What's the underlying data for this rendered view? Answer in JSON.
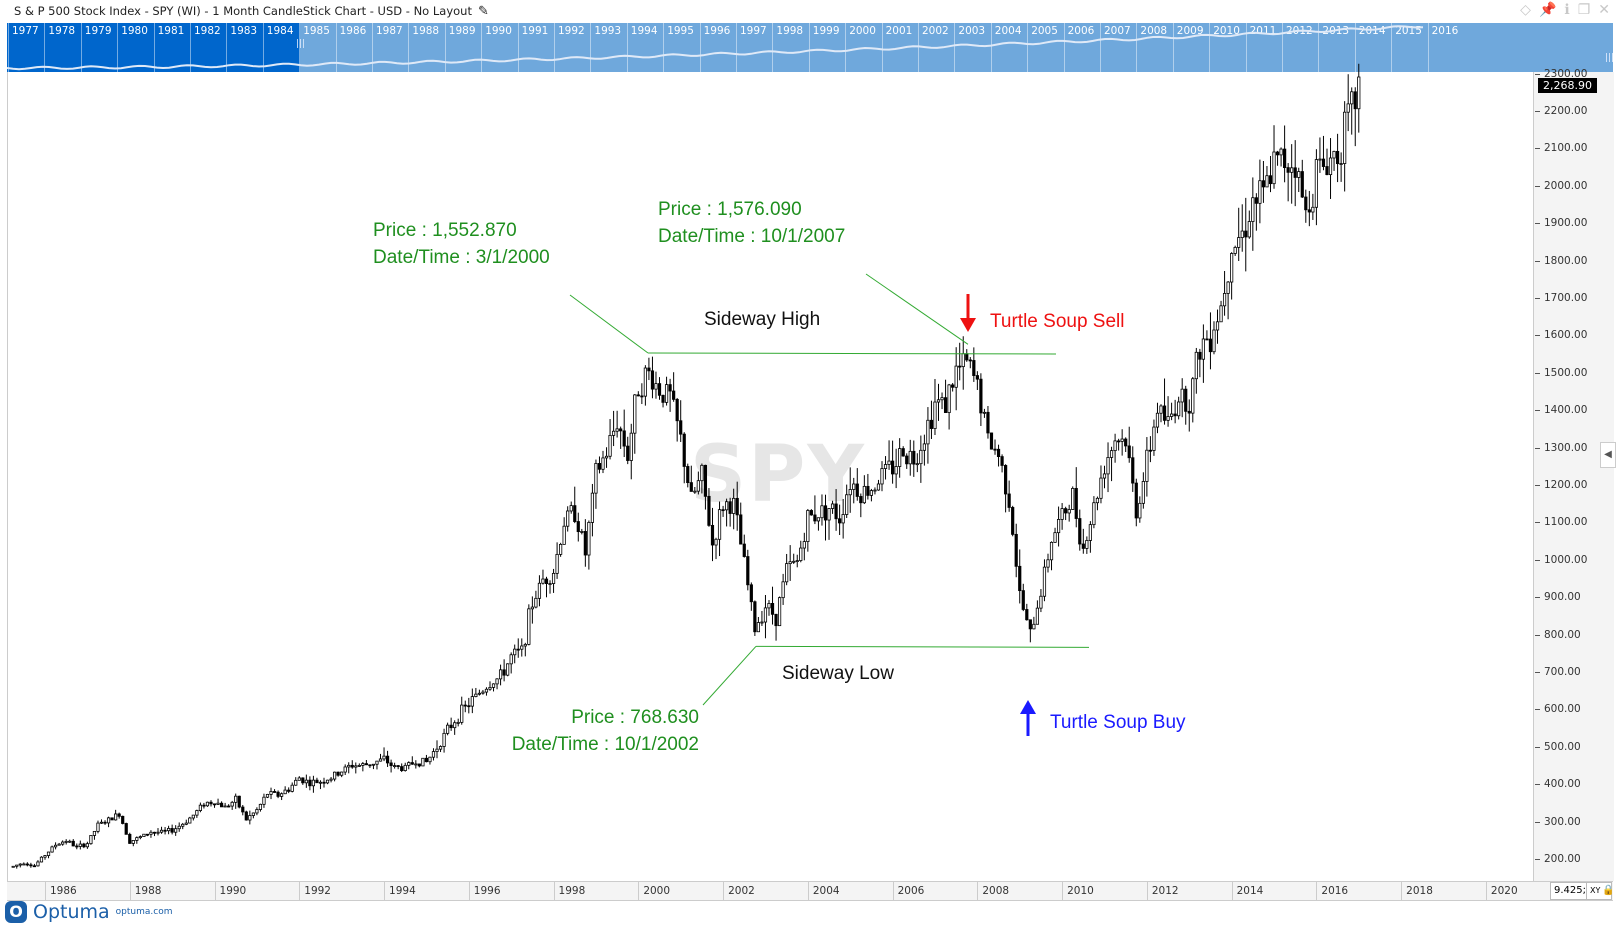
{
  "header": {
    "title": "S & P 500 Stock Index - SPY (WI) - 1 Month CandleStick Chart - USD - No Layout",
    "window_icons": [
      "diamond-icon",
      "pin-icon",
      "info-icon",
      "restore-icon",
      "close-icon"
    ]
  },
  "navigator": {
    "years": [
      "1977",
      "1978",
      "1979",
      "1980",
      "1981",
      "1982",
      "1983",
      "1984",
      "1985",
      "1986",
      "1987",
      "1988",
      "1989",
      "1990",
      "1991",
      "1992",
      "1993",
      "1994",
      "1995",
      "1996",
      "1997",
      "1998",
      "1999",
      "2000",
      "2001",
      "2002",
      "2003",
      "2004",
      "2005",
      "2006",
      "2007",
      "2008",
      "2009",
      "2010",
      "2011",
      "2012",
      "2013",
      "2014",
      "2015",
      "2016"
    ],
    "colors": {
      "selected": "#0066cc",
      "range": "#6fa8dc"
    }
  },
  "watermark": "SPY",
  "price_tag": "2,268.90",
  "scale_box": {
    "value": "9.425;",
    "mode": "XY"
  },
  "footer": {
    "brand": "Optuma",
    "url": "optuma.com"
  },
  "annotations": {
    "high1_price": "Price : 1,552.870",
    "high1_date": "Date/Time : 3/1/2000",
    "high2_price": "Price : 1,576.090",
    "high2_date": "Date/Time : 10/1/2007",
    "low_price": "Price : 768.630",
    "low_date": "Date/Time : 10/1/2002",
    "sideway_high": "Sideway High",
    "sideway_low": "Sideway Low",
    "sell": "Turtle Soup Sell",
    "buy": "Turtle Soup Buy"
  },
  "chart_data": {
    "type": "candlestick",
    "title": "S & P 500 Stock Index - SPY (WI) - 1 Month CandleStick Chart",
    "x_ticks": [
      "1986",
      "1988",
      "1990",
      "1992",
      "1994",
      "1996",
      "1998",
      "2000",
      "2002",
      "2004",
      "2006",
      "2008",
      "2010",
      "2012",
      "2014",
      "2016",
      "2018",
      "2020"
    ],
    "y_ticks": [
      "200.00",
      "300.00",
      "400.00",
      "500.00",
      "600.00",
      "700.00",
      "800.00",
      "900.00",
      "1000.00",
      "1100.00",
      "1200.00",
      "1300.00",
      "1400.00",
      "1500.00",
      "1600.00",
      "1700.00",
      "1800.00",
      "1900.00",
      "2000.00",
      "2100.00",
      "2200.00",
      "2300.00"
    ],
    "ylim": [
      170,
      2330
    ],
    "xlim": [
      1985.1,
      2020.9
    ],
    "quarterly_close_start": 1985.25,
    "quarterly_close": [
      180,
      191,
      182,
      211,
      238,
      250,
      231,
      242,
      291,
      304,
      321,
      247,
      258,
      273,
      271,
      277,
      294,
      317,
      349,
      353,
      339,
      358,
      306,
      330,
      375,
      371,
      387,
      417,
      403,
      408,
      417,
      435,
      451,
      450,
      458,
      466,
      445,
      444,
      462,
      459,
      500,
      544,
      584,
      615,
      645,
      670,
      687,
      740,
      757,
      885,
      947,
      970,
      1101,
      1133,
      1017,
      1229,
      1286,
      1372,
      1282,
      1469,
      1498,
      1454,
      1436,
      1320,
      1160,
      1224,
      1040,
      1148,
      1147,
      989,
      815,
      879,
      848,
      974,
      995,
      1111,
      1126,
      1140,
      1114,
      1211,
      1180,
      1191,
      1228,
      1248,
      1294,
      1270,
      1335,
      1418,
      1420,
      1503,
      1526,
      1468,
      1322,
      1280,
      1166,
      903,
      797,
      919,
      1057,
      1115,
      1169,
      1030,
      1141,
      1257,
      1325,
      1320,
      1131,
      1257,
      1408,
      1362,
      1440,
      1426,
      1569,
      1606,
      1681,
      1848,
      1872,
      1960,
      1972,
      2058,
      2067,
      2063,
      1920,
      2043,
      2059,
      2098,
      2168,
      2268
    ],
    "levels": [
      {
        "name": "Sideway High",
        "price": 1552.87,
        "from": 2000.17,
        "to": 2009.6
      },
      {
        "name": "Sideway Low",
        "price": 768.63,
        "from": 2002.75,
        "to": 2010.5
      }
    ],
    "last_price": 2268.9
  }
}
